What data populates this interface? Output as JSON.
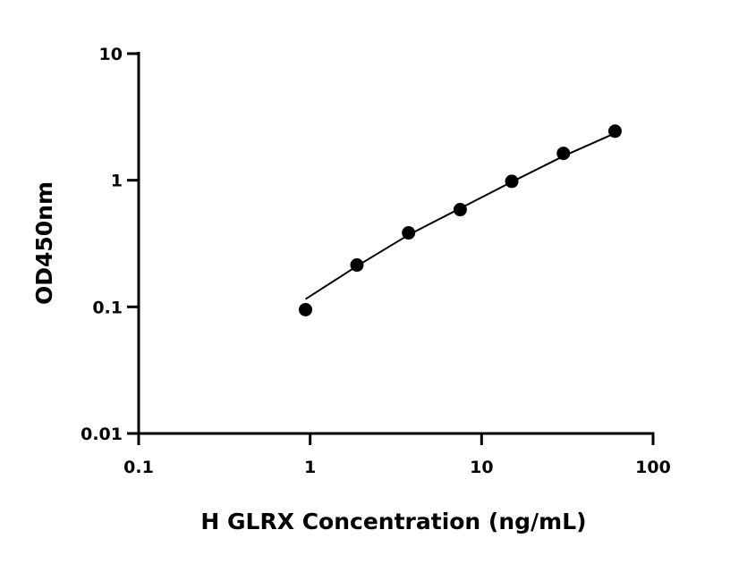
{
  "chart_data": {
    "type": "scatter",
    "title": "",
    "xlabel": "H GLRX Concentration (ng/mL)",
    "ylabel": "OD450nm",
    "xscale": "log",
    "yscale": "log",
    "xlim": [
      0.1,
      100
    ],
    "ylim": [
      0.01,
      10
    ],
    "xticks": [
      "0.1",
      "1",
      "10",
      "100"
    ],
    "yticks": [
      "0.01",
      "0.1",
      "1",
      "10"
    ],
    "grid": false,
    "legend": "none",
    "series": [
      {
        "type": "scatter",
        "color": "#000000",
        "x": [
          0.94,
          1.875,
          3.75,
          7.5,
          15,
          30,
          60
        ],
        "y": [
          0.095,
          0.214,
          0.384,
          0.586,
          0.98,
          1.63,
          2.44
        ]
      },
      {
        "type": "line",
        "color": "#000000",
        "x": [
          0.94,
          1.875,
          3.75,
          7.5,
          15,
          30,
          60
        ],
        "y": [
          0.115,
          0.21,
          0.37,
          0.6,
          0.97,
          1.55,
          2.35
        ]
      }
    ]
  }
}
